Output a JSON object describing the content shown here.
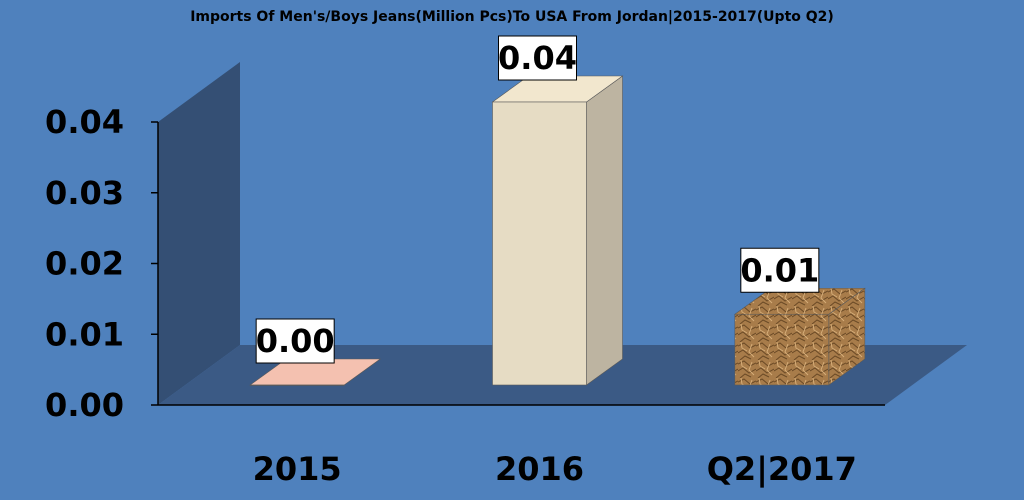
{
  "colors": {
    "background": "#4f81bd",
    "wall": "#344f74",
    "floor": "#3b5a85",
    "axis": "#000000",
    "label_box": "#ffffff"
  },
  "chart_data": {
    "type": "bar",
    "title": "Imports Of Men's/Boys Jeans(Million Pcs)To USA From Jordan|2015-2017(Upto Q2)",
    "xlabel": "",
    "ylabel": "",
    "categories": [
      "2015",
      "2016",
      "Q2|2017"
    ],
    "values": [
      0.0,
      0.04,
      0.01
    ],
    "data_labels": [
      "0.00",
      "0.04",
      "0.01"
    ],
    "ylim": [
      0,
      0.04
    ],
    "yticks": [
      "0.00",
      "0.01",
      "0.02",
      "0.03",
      "0.04"
    ],
    "bar_colors": [
      "#e8b8a8",
      "#e6dcc4",
      "#a87c4a"
    ],
    "grid": false,
    "legend": "none",
    "style": "3d-column"
  }
}
